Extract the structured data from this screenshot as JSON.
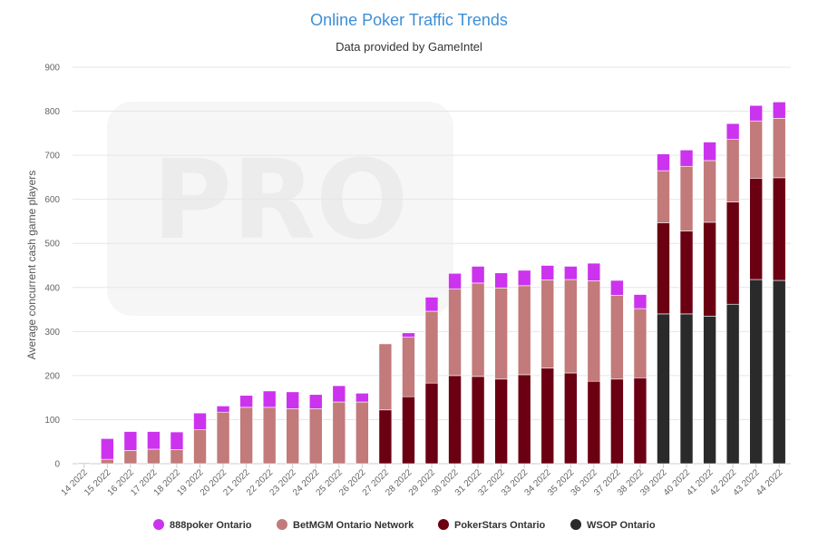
{
  "chart_data": {
    "type": "bar",
    "stacked": true,
    "title": "Online Poker Traffic Trends",
    "subtitle": "Data provided by GameIntel",
    "ylabel": "Average concurrent cash game players",
    "xlabel": "",
    "ylim": [
      0,
      900
    ],
    "yticks": [
      0,
      100,
      200,
      300,
      400,
      500,
      600,
      700,
      800,
      900
    ],
    "grid": true,
    "legend_position": "bottom",
    "watermark": "PRO",
    "categories": [
      "14 2022",
      "15 2022",
      "16 2022",
      "17 2022",
      "18 2022",
      "19 2022",
      "20 2022",
      "21 2022",
      "22 2022",
      "23 2022",
      "24 2022",
      "25 2022",
      "26 2022",
      "27 2022",
      "28 2022",
      "29 2022",
      "30 2022",
      "31 2022",
      "32 2022",
      "33 2022",
      "34 2022",
      "35 2022",
      "36 2022",
      "37 2022",
      "38 2022",
      "39 2022",
      "40 2022",
      "41 2022",
      "42 2022",
      "43 2022",
      "44 2022"
    ],
    "series": [
      {
        "name": "WSOP Ontario",
        "color": "#2a2a2a",
        "values": [
          0,
          0,
          0,
          0,
          0,
          0,
          0,
          0,
          0,
          0,
          0,
          0,
          0,
          0,
          0,
          0,
          0,
          0,
          0,
          0,
          0,
          0,
          0,
          0,
          0,
          340,
          340,
          335,
          362,
          418,
          416
        ]
      },
      {
        "name": "PokerStars Ontario",
        "color": "#6b0013",
        "values": [
          0,
          0,
          0,
          0,
          0,
          0,
          0,
          0,
          0,
          0,
          0,
          0,
          0,
          122,
          152,
          183,
          200,
          198,
          192,
          202,
          217,
          206,
          187,
          192,
          195,
          207,
          188,
          213,
          232,
          230,
          233
        ]
      },
      {
        "name": "BetMGM Ontario Network",
        "color": "#c27a7a",
        "values": [
          2,
          10,
          30,
          33,
          32,
          77,
          117,
          128,
          128,
          125,
          125,
          140,
          140,
          150,
          135,
          163,
          197,
          212,
          207,
          202,
          200,
          212,
          228,
          190,
          157,
          118,
          147,
          140,
          142,
          130,
          135
        ]
      },
      {
        "name": "888poker Ontario",
        "color": "#cc33ee",
        "values": [
          0,
          47,
          43,
          40,
          40,
          38,
          14,
          27,
          37,
          38,
          32,
          37,
          20,
          0,
          10,
          32,
          35,
          38,
          34,
          35,
          33,
          30,
          40,
          34,
          32,
          38,
          37,
          42,
          36,
          35,
          37
        ]
      }
    ],
    "legend_order": [
      "888poker Ontario",
      "BetMGM Ontario Network",
      "PokerStars Ontario",
      "WSOP Ontario"
    ]
  }
}
